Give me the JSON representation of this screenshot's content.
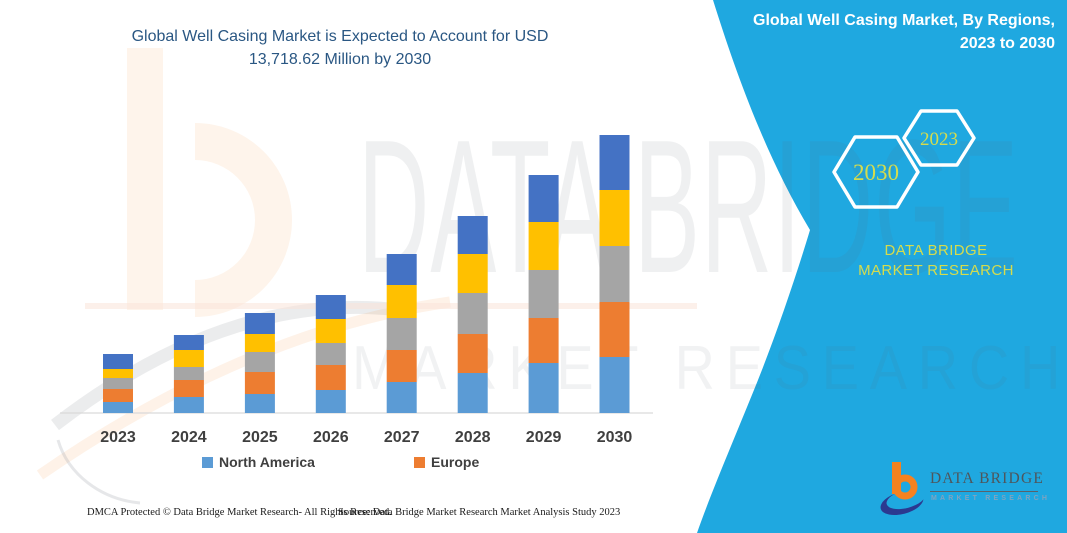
{
  "title": {
    "line1": "Global Well Casing Market is Expected to Account for USD",
    "line2": "13,718.62 Million by 2030"
  },
  "panel": {
    "title": "Global Well Casing Market, By Regions, 2023 to 2030",
    "hexagons": [
      {
        "label": "2030"
      },
      {
        "label": "2023"
      }
    ],
    "caption": "DATA BRIDGE MARKET RESEARCH",
    "bg_color": "#1fa8e0",
    "accent_text_color": "#d5dc4d"
  },
  "watermark": {
    "line1": "DATA BRIDGE",
    "line2": "MARKET RESEARCH"
  },
  "brand_logo": {
    "wordmark": "DATA BRIDGE",
    "subtitle": "MARKET RESEARCH",
    "orange": "#f58220",
    "navy": "#2b3990"
  },
  "footer": {
    "dmca": "DMCA Protected © Data Bridge Market Research-  All Rights Reserved.",
    "source": "Source: Data Bridge Market Research  Market Analysis Study 2023"
  },
  "chart_data": {
    "type": "bar",
    "stacked": true,
    "unit": "USD Million (estimated from bar heights; 2030 total given as 13,718.62)",
    "categories": [
      "2023",
      "2024",
      "2025",
      "2026",
      "2027",
      "2028",
      "2029",
      "2030"
    ],
    "series": [
      {
        "name": "North America",
        "color": "#5b9bd5",
        "in_legend": true,
        "values": [
          543,
          790,
          938,
          1135,
          1530,
          1974,
          2468,
          2764
        ]
      },
      {
        "name": "Europe",
        "color": "#ed7d31",
        "in_legend": true,
        "values": [
          642,
          839,
          1086,
          1234,
          1579,
          1925,
          2221,
          2714
        ]
      },
      {
        "name": "unlabeled region (gray)",
        "color": "#a5a5a5",
        "in_legend": false,
        "values": [
          543,
          642,
          987,
          1086,
          1579,
          2023,
          2369,
          2764
        ]
      },
      {
        "name": "unlabeled region (yellow)",
        "color": "#ffc000",
        "in_legend": false,
        "values": [
          444,
          839,
          888,
          1184,
          1629,
          1925,
          2369,
          2764
        ]
      },
      {
        "name": "unlabeled region (dark blue)",
        "color": "#4472c4",
        "in_legend": false,
        "values": [
          740,
          740,
          1036,
          1184,
          1530,
          1875,
          2320,
          2714
        ]
      }
    ],
    "totals": [
      2912,
      3850,
      4935,
      5823,
      7847,
      9722,
      11747,
      13720
    ],
    "legend": [
      "North America",
      "Europe"
    ],
    "legend_position": "bottom",
    "xlabel": "",
    "ylabel": "",
    "grid": false,
    "y_axis_shown": false
  }
}
